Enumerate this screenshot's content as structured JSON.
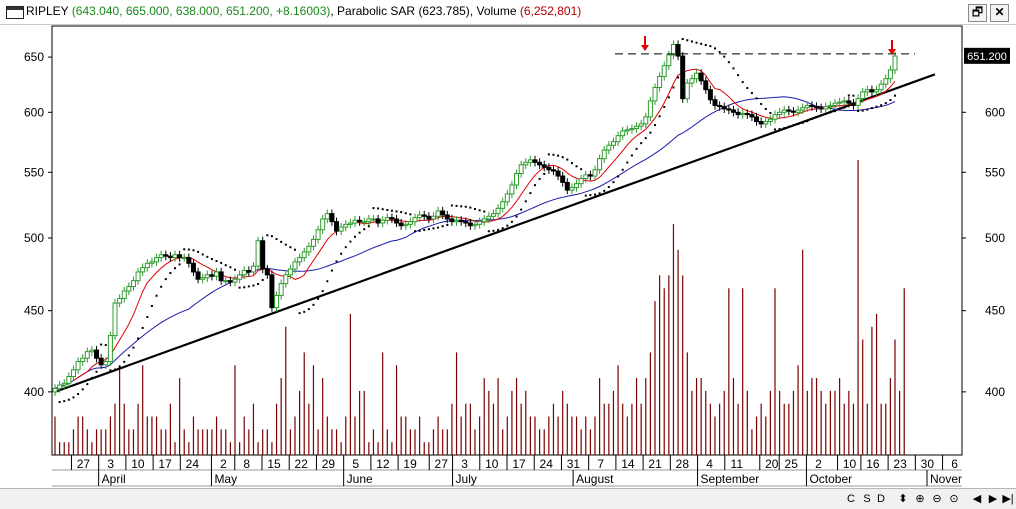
{
  "window": {
    "symbol": "RIPLEY",
    "ohlc_text": "(643.040, 665.000, 638.000, 651.200, +8.16003)",
    "sar_label": "Parabolic SAR",
    "sar_value": "(623.785)",
    "volume_label": "Volume",
    "volume_value": "(6,252,801)",
    "restore_label": "🗗",
    "close_label": "✕"
  },
  "colors": {
    "up_candle": "#2e9c2e",
    "down_candle": "#000000",
    "sma_short": "#e00000",
    "sma_long": "#1a1aa8",
    "trendline": "#000000",
    "volume": "#7a0000",
    "sar": "#000000",
    "resistance": "#000000",
    "arrow": "#e00000",
    "price_tag": "#000000"
  },
  "chart_data": {
    "type": "candlestick",
    "y_range": [
      365,
      680
    ],
    "y_scale": "log",
    "grid": false,
    "yticks_left": [
      400,
      450,
      500,
      550,
      600,
      650
    ],
    "yticks_right": [
      400,
      450,
      500,
      550,
      600
    ],
    "last_price_label": "651.200",
    "day_ticks": [
      {
        "label": "27",
        "x": 27
      },
      {
        "label": "3",
        "x": 34
      },
      {
        "label": "10",
        "x": 41
      },
      {
        "label": "17",
        "x": 48
      },
      {
        "label": "24",
        "x": 55
      },
      {
        "label": "2",
        "x": 63
      },
      {
        "label": "8",
        "x": 69
      },
      {
        "label": "15",
        "x": 76
      },
      {
        "label": "22",
        "x": 83
      },
      {
        "label": "29",
        "x": 90
      },
      {
        "label": "5",
        "x": 97
      },
      {
        "label": "12",
        "x": 104
      },
      {
        "label": "19",
        "x": 111
      },
      {
        "label": "27",
        "x": 119
      },
      {
        "label": "3",
        "x": 125
      },
      {
        "label": "10",
        "x": 132
      },
      {
        "label": "17",
        "x": 139
      },
      {
        "label": "24",
        "x": 146
      },
      {
        "label": "31",
        "x": 153
      },
      {
        "label": "7",
        "x": 160
      },
      {
        "label": "14",
        "x": 167
      },
      {
        "label": "21",
        "x": 174
      },
      {
        "label": "28",
        "x": 181
      },
      {
        "label": "4",
        "x": 188
      },
      {
        "label": "11",
        "x": 195
      },
      {
        "label": "20",
        "x": 204
      },
      {
        "label": "25",
        "x": 209
      },
      {
        "label": "2",
        "x": 216
      },
      {
        "label": "10",
        "x": 224
      },
      {
        "label": "16",
        "x": 230
      },
      {
        "label": "23",
        "x": 237
      },
      {
        "label": "30",
        "x": 244
      },
      {
        "label": "6",
        "x": 251
      }
    ],
    "month_ticks": [
      {
        "label": "April",
        "x": 34
      },
      {
        "label": "May",
        "x": 63
      },
      {
        "label": "June",
        "x": 97
      },
      {
        "label": "July",
        "x": 125
      },
      {
        "label": "August",
        "x": 156
      },
      {
        "label": "September",
        "x": 188
      },
      {
        "label": "October",
        "x": 216
      },
      {
        "label": "Nover",
        "x": 247
      }
    ],
    "x_range": [
      22,
      256
    ],
    "closes": [
      402,
      404,
      405,
      409,
      413,
      418,
      420,
      424,
      425,
      420,
      416,
      418,
      434,
      455,
      458,
      463,
      466,
      470,
      476,
      479,
      482,
      483,
      486,
      488,
      487,
      486,
      488,
      486,
      486,
      482,
      476,
      471,
      472,
      474,
      473,
      476,
      470,
      470,
      469,
      471,
      474,
      477,
      476,
      480,
      498,
      478,
      474,
      452,
      460,
      468,
      474,
      478,
      483,
      486,
      490,
      494,
      499,
      506,
      514,
      518,
      512,
      505,
      508,
      510,
      511,
      513,
      512,
      512,
      514,
      514,
      511,
      513,
      515,
      514,
      511,
      509,
      510,
      512,
      515,
      517,
      516,
      514,
      516,
      520,
      517,
      514,
      512,
      513,
      512,
      511,
      509,
      510,
      512,
      514,
      516,
      518,
      522,
      527,
      533,
      540,
      549,
      556,
      558,
      560,
      558,
      556,
      554,
      552,
      551,
      547,
      542,
      536,
      538,
      541,
      545,
      548,
      547,
      552,
      561,
      568,
      572,
      575,
      580,
      584,
      585,
      586,
      588,
      590,
      596,
      610,
      622,
      632,
      642,
      652,
      662,
      651,
      612,
      626,
      630,
      635,
      628,
      620,
      611,
      606,
      605,
      603,
      602,
      600,
      598,
      599,
      598,
      596,
      592,
      590,
      592,
      594,
      598,
      600,
      602,
      601,
      600,
      602,
      604,
      606,
      605,
      604,
      603,
      605,
      606,
      608,
      609,
      610,
      608,
      606,
      612,
      618,
      620,
      618,
      620,
      625,
      630,
      638,
      651
    ],
    "volume": {
      "max_bar_value_note": "bars only; no axis",
      "values": [
        3,
        1,
        1,
        1,
        2,
        3,
        3,
        2,
        1,
        2,
        2,
        2,
        3,
        4,
        7,
        4,
        2,
        2,
        4,
        7,
        3,
        3,
        3,
        2,
        2,
        4,
        1,
        6,
        2,
        1,
        3,
        2,
        2,
        2,
        2,
        3,
        2,
        2,
        1,
        7,
        1,
        3,
        2,
        4,
        1,
        2,
        2,
        1,
        4,
        6,
        10,
        2,
        3,
        5,
        8,
        4,
        7,
        2,
        6,
        3,
        2,
        2,
        1,
        3,
        11,
        3,
        5,
        5,
        1,
        2,
        1,
        8,
        2,
        1,
        7,
        3,
        3,
        2,
        2,
        3,
        1,
        1,
        2,
        3,
        2,
        2,
        4,
        8,
        3,
        4,
        4,
        2,
        3,
        6,
        5,
        4,
        6,
        2,
        3,
        5,
        6,
        4,
        5,
        3,
        3,
        2,
        2,
        3,
        4,
        3,
        5,
        4,
        3,
        3,
        2,
        3,
        2,
        3,
        6,
        4,
        4,
        5,
        7,
        4,
        3,
        4,
        6,
        4,
        6,
        8,
        12,
        14,
        13,
        14,
        18,
        16,
        14,
        8,
        5,
        6,
        6,
        5,
        4,
        3,
        4,
        5,
        13,
        6,
        4,
        13,
        5,
        2,
        3,
        4,
        3,
        5,
        13,
        5,
        4,
        4,
        5,
        7,
        16,
        5,
        6,
        6,
        5,
        4,
        5,
        5,
        6,
        4,
        5,
        4,
        23,
        9,
        4,
        10,
        11,
        4,
        4,
        6,
        9,
        5,
        13
      ]
    }
  },
  "statusbar": {
    "c_label": "C",
    "s_label": "S",
    "d_label": "D",
    "updown_label": "⬍",
    "plus_label": "⊕",
    "minus_label": "⊖",
    "target_label": "⊙",
    "prev_label": "◀",
    "play_label": "▶",
    "next_label": "▶|"
  }
}
